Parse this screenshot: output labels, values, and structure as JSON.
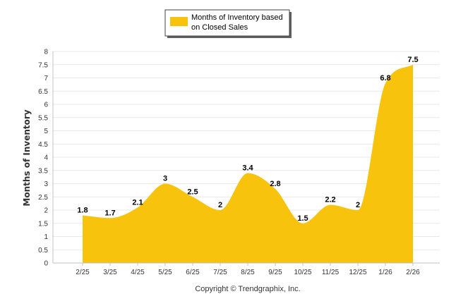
{
  "chart_data": {
    "type": "area",
    "categories": [
      "2/25",
      "3/25",
      "4/25",
      "5/25",
      "6/25",
      "7/25",
      "8/25",
      "9/25",
      "10/25",
      "11/25",
      "12/25",
      "1/26",
      "2/26"
    ],
    "series": [
      {
        "name": "Months of Inventory based on Closed Sales",
        "values": [
          1.8,
          1.7,
          2.1,
          3,
          2.5,
          2,
          3.4,
          2.8,
          1.5,
          2.2,
          2,
          6.8,
          7.5
        ]
      }
    ],
    "value_labels": [
      "1.8",
      "1.7",
      "2.1",
      "3",
      "2.5",
      "2",
      "3.4",
      "2.8",
      "1.5",
      "2.2",
      "2",
      "6.8",
      "7.5"
    ],
    "y_ticks": [
      "0",
      "0.5",
      "1",
      "1.5",
      "2",
      "2.5",
      "3",
      "3.5",
      "4",
      "4.5",
      "5",
      "5.5",
      "6",
      "6.5",
      "7",
      "7.5",
      "8"
    ],
    "ylim": [
      0,
      8
    ],
    "ylabel": "Months of Inventory",
    "xlabel": "",
    "legend_lines": [
      "Months of Inventory based",
      "on Closed Sales"
    ],
    "legend_position": "top-center",
    "grid": true,
    "colors": {
      "fill": "#f7c30d",
      "grid": "#e8e8e8",
      "axis": "#c0c0c0"
    }
  },
  "footer": {
    "credit": "Copyright © Trendgraphix, Inc."
  }
}
